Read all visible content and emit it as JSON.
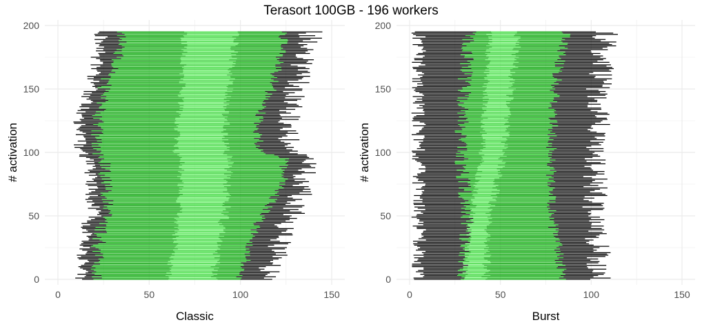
{
  "chart_data": {
    "type": "bar",
    "title": "Terasort 100GB - 196 workers",
    "legend": "none",
    "grid": true,
    "colors": {
      "overall": "#000000",
      "phase_dark": "#27c727",
      "phase_light": "#6cf56c",
      "grid": "#ebebeb"
    },
    "series_description": [
      "total span per activation (black)",
      "map phase (dark green)",
      "shuffle phase (light green)",
      "reduce phase (dark green)"
    ],
    "panels": [
      {
        "xlabel": "Classic",
        "ylabel": "# activation",
        "xlim": [
          0,
          150
        ],
        "ylim": [
          0,
          200
        ],
        "xticks": [
          "0",
          "50",
          "100",
          "150"
        ],
        "yticks": [
          "0",
          "50",
          "100",
          "150",
          "200"
        ],
        "n_activations": 196,
        "profile": [
          {
            "y": 0,
            "start": 12,
            "map_end": 21,
            "light_start": 60,
            "light_end": 85,
            "reduce_end": 99,
            "end": 115
          },
          {
            "y": 25,
            "start": 15,
            "map_end": 22,
            "light_start": 64,
            "light_end": 88,
            "reduce_end": 105,
            "end": 120
          },
          {
            "y": 45,
            "start": 15,
            "map_end": 24,
            "light_start": 65,
            "light_end": 90,
            "reduce_end": 110,
            "end": 125
          },
          {
            "y": 50,
            "start": 20,
            "map_end": 28,
            "light_start": 66,
            "light_end": 92,
            "reduce_end": 113,
            "end": 128
          },
          {
            "y": 75,
            "start": 18,
            "map_end": 26,
            "light_start": 67,
            "light_end": 93,
            "reduce_end": 123,
            "end": 135
          },
          {
            "y": 95,
            "start": 18,
            "map_end": 26,
            "light_start": 68,
            "light_end": 94,
            "reduce_end": 124,
            "end": 137
          },
          {
            "y": 100,
            "start": 12,
            "map_end": 22,
            "light_start": 64,
            "light_end": 92,
            "reduce_end": 110,
            "end": 125
          },
          {
            "y": 125,
            "start": 12,
            "map_end": 22,
            "light_start": 66,
            "light_end": 92,
            "reduce_end": 110,
            "end": 127
          },
          {
            "y": 150,
            "start": 18,
            "map_end": 25,
            "light_start": 68,
            "light_end": 94,
            "reduce_end": 117,
            "end": 130
          },
          {
            "y": 175,
            "start": 22,
            "map_end": 32,
            "light_start": 69,
            "light_end": 96,
            "reduce_end": 122,
            "end": 136
          },
          {
            "y": 195,
            "start": 24,
            "map_end": 36,
            "light_start": 69,
            "light_end": 98,
            "reduce_end": 124,
            "end": 139
          }
        ]
      },
      {
        "xlabel": "Burst",
        "ylabel": "# activation",
        "xlim": [
          0,
          150
        ],
        "ylim": [
          0,
          200
        ],
        "xticks": [
          "0",
          "50",
          "100",
          "150"
        ],
        "yticks": [
          "0",
          "50",
          "100",
          "150",
          "200"
        ],
        "n_activations": 196,
        "profile": [
          {
            "y": 0,
            "start": 5,
            "map_end": 30,
            "light_start": 30,
            "light_end": 42,
            "reduce_end": 85,
            "end": 105
          },
          {
            "y": 50,
            "start": 5,
            "map_end": 32,
            "light_start": 34,
            "light_end": 44,
            "reduce_end": 78,
            "end": 102
          },
          {
            "y": 100,
            "start": 5,
            "map_end": 28,
            "light_start": 40,
            "light_end": 52,
            "reduce_end": 78,
            "end": 103
          },
          {
            "y": 150,
            "start": 5,
            "map_end": 30,
            "light_start": 42,
            "light_end": 56,
            "reduce_end": 80,
            "end": 104
          },
          {
            "y": 195,
            "start": 5,
            "map_end": 33,
            "light_start": 44,
            "light_end": 60,
            "reduce_end": 86,
            "end": 108
          }
        ]
      }
    ]
  }
}
